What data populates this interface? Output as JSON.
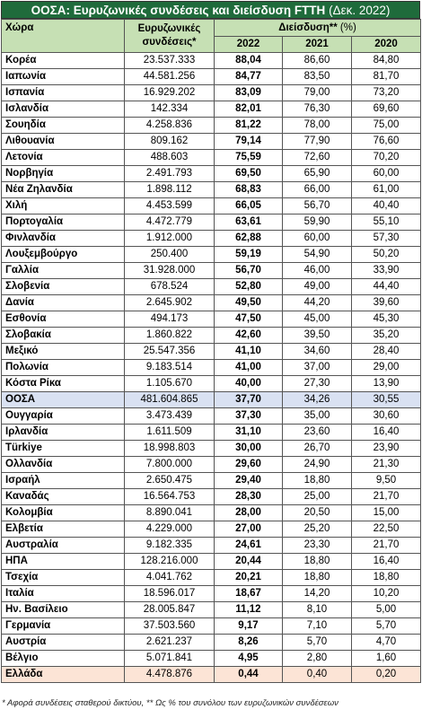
{
  "header": {
    "title": "ΟΟΣΑ: Ευρυζωνικές συνδέσεις και διείσδυση FTTH",
    "title_note": "(Δεκ. 2022)"
  },
  "table": {
    "columns": {
      "country": "Χώρα",
      "connections": "Ευρυζωνικές συνδέσεις*",
      "penetration": "Διείσδυση**",
      "penetration_unit": "(%)",
      "years": [
        "2022",
        "2021",
        "2020"
      ]
    },
    "rows": [
      [
        "Κορέα",
        "23.537.333",
        "88,04",
        "86,60",
        "84,80"
      ],
      [
        "Ιαπωνία",
        "44.581.256",
        "84,77",
        "83,50",
        "81,70"
      ],
      [
        "Ισπανία",
        "16.929.202",
        "83,09",
        "79,00",
        "73,20"
      ],
      [
        "Ισλανδία",
        "142.334",
        "82,01",
        "76,30",
        "69,60"
      ],
      [
        "Σουηδία",
        "4.258.836",
        "81,22",
        "78,00",
        "75,00"
      ],
      [
        "Λιθουανία",
        "809.162",
        "79,14",
        "77,90",
        "76,60"
      ],
      [
        "Λετονία",
        "488.603",
        "75,59",
        "72,60",
        "70,20"
      ],
      [
        "Νορβηγία",
        "2.491.793",
        "69,50",
        "65,90",
        "60,00"
      ],
      [
        "Νέα Ζηλανδία",
        "1.898.112",
        "68,83",
        "66,00",
        "61,00"
      ],
      [
        "Χιλή",
        "4.453.599",
        "66,05",
        "56,70",
        "40,40"
      ],
      [
        "Πορτογαλία",
        "4.472.779",
        "63,61",
        "59,90",
        "55,10"
      ],
      [
        "Φινλανδία",
        "1.912.000",
        "62,88",
        "60,00",
        "57,30"
      ],
      [
        "Λουξεμβούργο",
        "250.400",
        "59,19",
        "54,90",
        "50,20"
      ],
      [
        "Γαλλία",
        "31.928.000",
        "56,70",
        "46,00",
        "33,90"
      ],
      [
        "Σλοβενία",
        "678.524",
        "52,80",
        "49,00",
        "44,40"
      ],
      [
        "Δανία",
        "2.645.902",
        "49,50",
        "44,20",
        "39,60"
      ],
      [
        "Εσθονία",
        "494.173",
        "47,50",
        "45,00",
        "45,30"
      ],
      [
        "Σλοβακία",
        "1.860.822",
        "42,60",
        "39,50",
        "35,20"
      ],
      [
        "Μεξικό",
        "25.547.356",
        "41,10",
        "34,60",
        "28,40"
      ],
      [
        "Πολωνία",
        "9.183.514",
        "41,00",
        "37,00",
        "29,00"
      ],
      [
        "Κόστα Ρίκα",
        "1.105.670",
        "40,00",
        "27,30",
        "13,90"
      ],
      [
        "ΟΟΣΑ",
        "481.604.865",
        "37,70",
        "34,26",
        "30,55"
      ],
      [
        "Ουγγαρία",
        "3.473.439",
        "37,30",
        "35,00",
        "30,60"
      ],
      [
        "Ιρλανδία",
        "1.611.509",
        "31,10",
        "23,60",
        "16,40"
      ],
      [
        "Türkiye",
        "18.998.803",
        "30,00",
        "26,70",
        "23,90"
      ],
      [
        "Ολλανδία",
        "7.800.000",
        "29,60",
        "24,90",
        "21,30"
      ],
      [
        "Ισραήλ",
        "2.650.475",
        "29,40",
        "18,80",
        "9,50"
      ],
      [
        "Καναδάς",
        "16.564.753",
        "28,30",
        "25,00",
        "21,70"
      ],
      [
        "Κολομβία",
        "8.890.041",
        "28,00",
        "20,50",
        "15,00"
      ],
      [
        "Ελβετία",
        "4.229.000",
        "27,00",
        "25,20",
        "22,50"
      ],
      [
        "Αυστραλία",
        "9.182.335",
        "24,61",
        "23,30",
        "21,70"
      ],
      [
        "ΗΠΑ",
        "128.216.000",
        "20,44",
        "18,80",
        "16,40"
      ],
      [
        "Τσεχία",
        "4.041.762",
        "20,21",
        "18,80",
        "18,80"
      ],
      [
        "Ιταλία",
        "18.596.017",
        "18,67",
        "14,20",
        "10,20"
      ],
      [
        "Ην. Βασίλειο",
        "28.005.847",
        "11,12",
        "8,10",
        "5,00"
      ],
      [
        "Γερμανία",
        "37.503.560",
        "9,17",
        "7,10",
        "5,70"
      ],
      [
        "Αυστρία",
        "2.621.237",
        "8,26",
        "5,70",
        "4,70"
      ],
      [
        "Βέλγιο",
        "5.071.841",
        "4,95",
        "2,80",
        "1,60"
      ],
      [
        "Ελλάδα",
        "4.478.876",
        "0,44",
        "0,40",
        "0,20"
      ]
    ]
  },
  "footnote": "* Αφορά συνδέσεις σταθερού δικτύου, ** Ως % του συνόλου των ευρυζωνικών συνδέσεων"
}
